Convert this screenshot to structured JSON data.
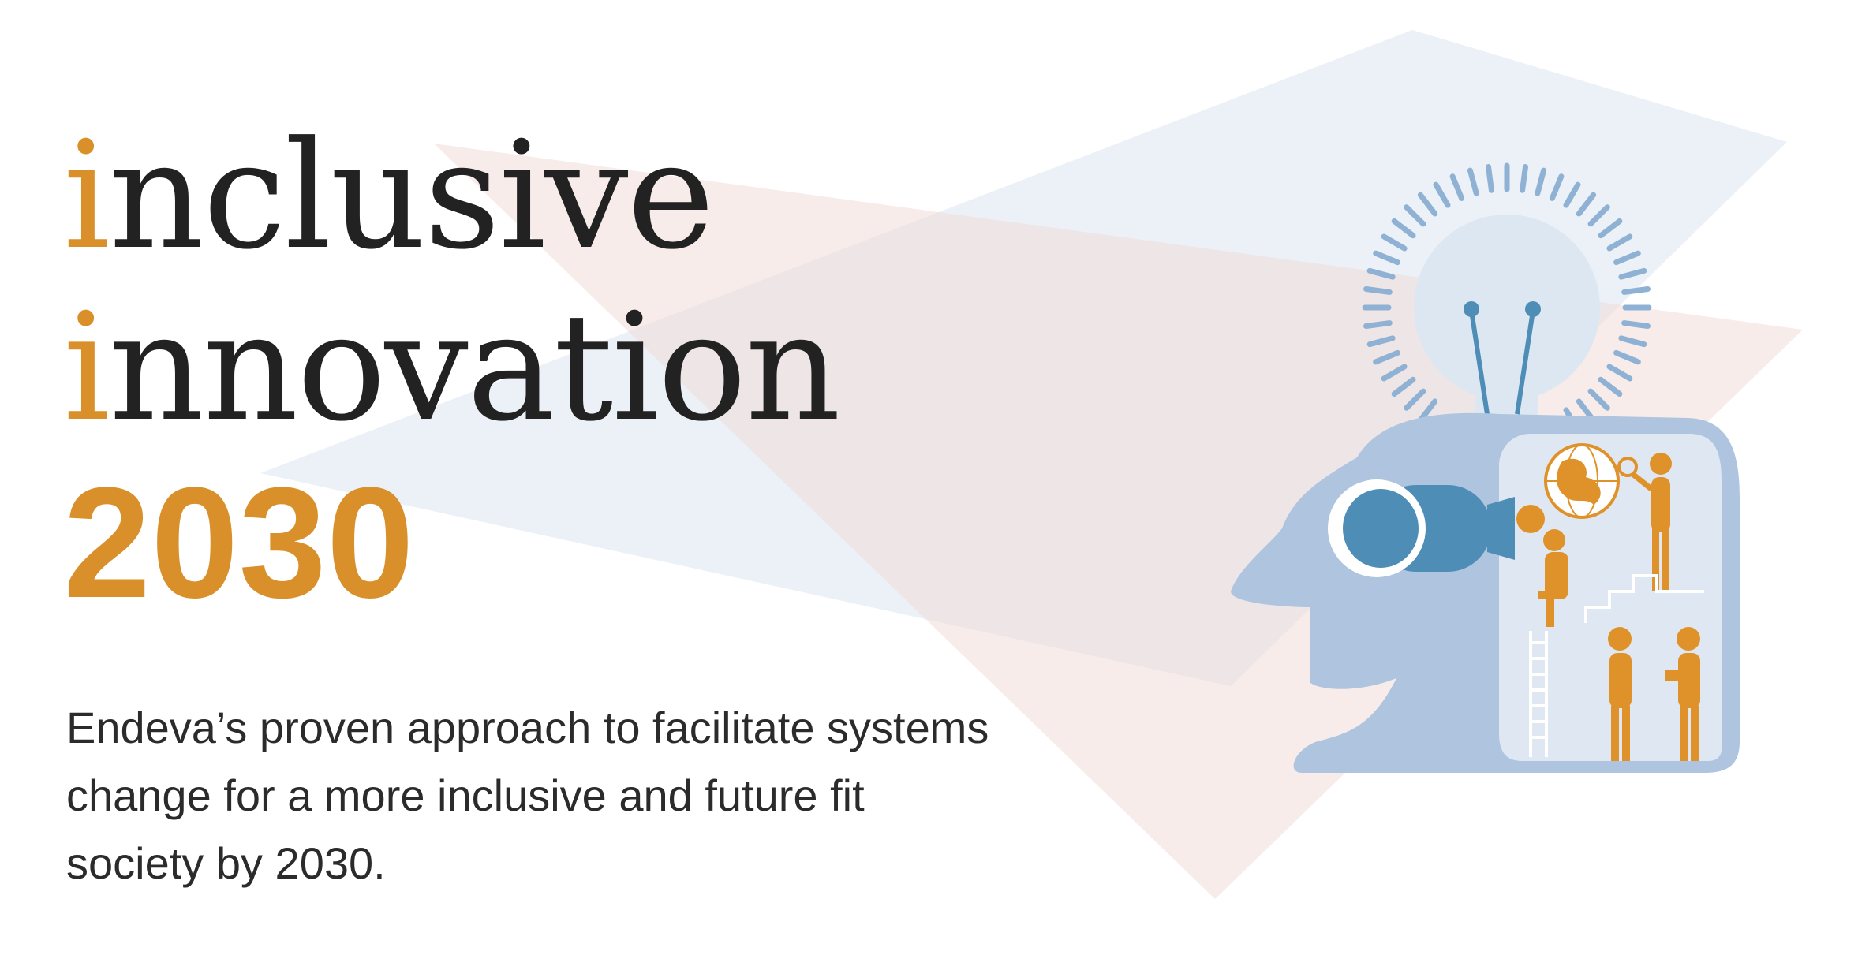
{
  "title": {
    "line1_accent": "i",
    "line1_rest": "nclusive",
    "line2_accent": "i",
    "line2_rest": "nnovation",
    "year": "2030"
  },
  "subtitle": "Endeva’s proven approach to facilitate systems change for a more inclusive and future fit society by 2030.",
  "colors": {
    "accent": "#d9902a",
    "text": "#222222",
    "head_blue": "#aec4df",
    "bulb_blue": "#dde7f2",
    "ray_blue": "#8fb1d4",
    "eye_blue": "#4e8db5",
    "figure_orange": "#df922a",
    "bg_blue": "#dbe6f1",
    "bg_pink": "#efd9d5"
  },
  "illustration": {
    "icons": [
      "light-bulb-icon",
      "head-profile-icon",
      "telescope-icon",
      "globe-icon",
      "magnifier-icon",
      "person-icon",
      "ladder-icon",
      "stairs-icon"
    ]
  }
}
